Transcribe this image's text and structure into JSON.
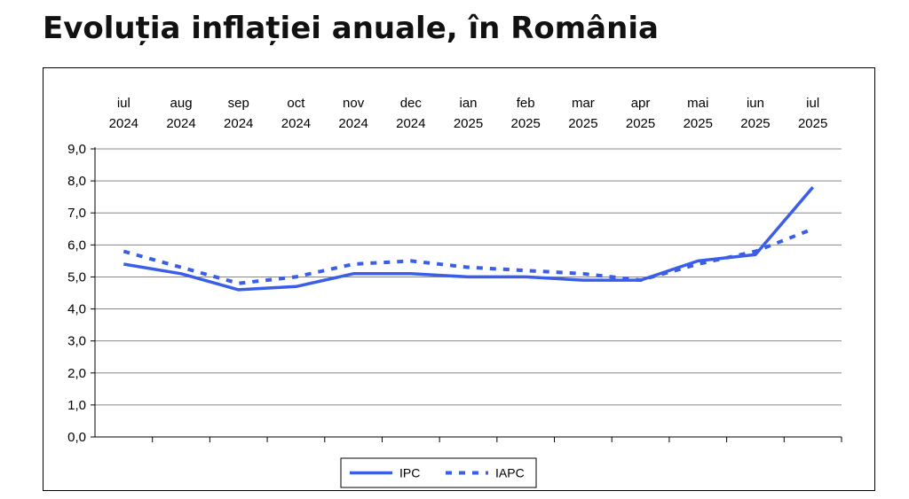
{
  "chart_data": {
    "type": "line",
    "title": "Evoluția inflației anuale, în România",
    "categories": [
      [
        "iul",
        "2024"
      ],
      [
        "aug",
        "2024"
      ],
      [
        "sep",
        "2024"
      ],
      [
        "oct",
        "2024"
      ],
      [
        "nov",
        "2024"
      ],
      [
        "dec",
        "2024"
      ],
      [
        "ian",
        "2025"
      ],
      [
        "feb",
        "2025"
      ],
      [
        "mar",
        "2025"
      ],
      [
        "apr",
        "2025"
      ],
      [
        "mai",
        "2025"
      ],
      [
        "iun",
        "2025"
      ],
      [
        "iul",
        "2025"
      ]
    ],
    "yticks": [
      "0,0",
      "1,0",
      "2,0",
      "3,0",
      "4,0",
      "5,0",
      "6,0",
      "7,0",
      "8,0",
      "9,0"
    ],
    "ylim": [
      0,
      9
    ],
    "grid": true,
    "legend_position": "bottom-center",
    "series": [
      {
        "name": "IPC",
        "style": "solid",
        "color": "#3a5ee8",
        "values": [
          5.4,
          5.1,
          4.6,
          4.7,
          5.1,
          5.1,
          5.0,
          5.0,
          4.9,
          4.9,
          5.5,
          5.7,
          7.8
        ]
      },
      {
        "name": "IAPC",
        "style": "dotted",
        "color": "#3a5ee8",
        "values": [
          5.8,
          5.3,
          4.8,
          5.0,
          5.4,
          5.5,
          5.3,
          5.2,
          5.1,
          4.9,
          5.4,
          5.8,
          6.5
        ]
      }
    ]
  }
}
